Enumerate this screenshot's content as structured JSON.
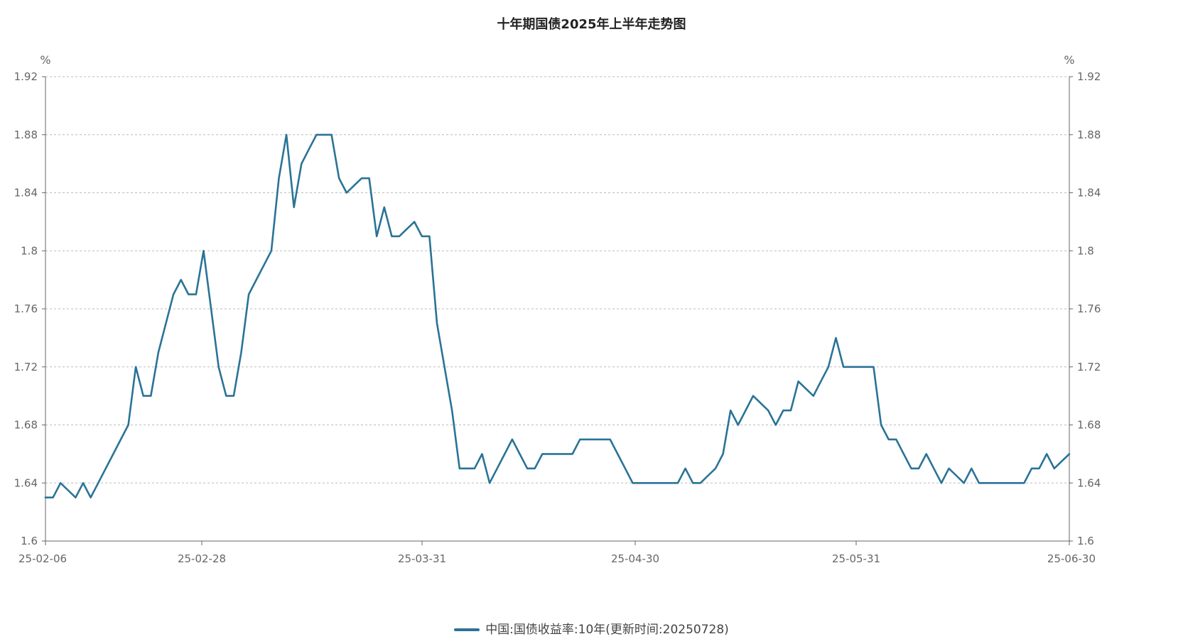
{
  "colors": {
    "series": "#2a7397",
    "grid": "#bbbbbb",
    "axis": "#666666"
  },
  "chart_data": {
    "type": "line",
    "title": "十年期国债2025年上半年走势图",
    "left_unit": "%",
    "right_unit": "%",
    "ylim": [
      1.6,
      1.92
    ],
    "yticks": [
      "1.6",
      "1.64",
      "1.68",
      "1.72",
      "1.76",
      "1.8",
      "1.84",
      "1.88",
      "1.92"
    ],
    "xticks": [
      "25-02-06",
      "25-02-28",
      "25-03-31",
      "25-04-30",
      "25-05-31",
      "25-06-30"
    ],
    "grid": true,
    "legend_position": "bottom",
    "series": [
      {
        "name": "中国:国债收益率:10年(更新时间:20250728)",
        "values": [
          1.63,
          1.63,
          1.64,
          1.635,
          1.63,
          1.64,
          1.63,
          1.64,
          1.65,
          1.66,
          1.67,
          1.68,
          1.72,
          1.7,
          1.7,
          1.73,
          1.75,
          1.77,
          1.78,
          1.77,
          1.77,
          1.8,
          1.76,
          1.72,
          1.7,
          1.7,
          1.73,
          1.77,
          1.78,
          1.79,
          1.8,
          1.85,
          1.88,
          1.83,
          1.86,
          1.87,
          1.88,
          1.88,
          1.88,
          1.85,
          1.84,
          1.845,
          1.85,
          1.85,
          1.81,
          1.83,
          1.81,
          1.81,
          1.815,
          1.82,
          1.81,
          1.81,
          1.75,
          1.72,
          1.69,
          1.65,
          1.65,
          1.65,
          1.66,
          1.64,
          1.65,
          1.66,
          1.67,
          1.66,
          1.65,
          1.65,
          1.66,
          1.66,
          1.66,
          1.66,
          1.66,
          1.67,
          1.67,
          1.67,
          1.67,
          1.67,
          1.66,
          1.65,
          1.64,
          1.64,
          1.64,
          1.64,
          1.64,
          1.64,
          1.64,
          1.65,
          1.64,
          1.64,
          1.645,
          1.65,
          1.66,
          1.69,
          1.68,
          1.69,
          1.7,
          1.695,
          1.69,
          1.68,
          1.69,
          1.69,
          1.71,
          1.705,
          1.7,
          1.71,
          1.72,
          1.74,
          1.72,
          1.72,
          1.72,
          1.72,
          1.72,
          1.68,
          1.67,
          1.67,
          1.66,
          1.65,
          1.65,
          1.66,
          1.65,
          1.64,
          1.65,
          1.645,
          1.64,
          1.65,
          1.64,
          1.64,
          1.64,
          1.64,
          1.64,
          1.64,
          1.64,
          1.65,
          1.65,
          1.66,
          1.65,
          1.655,
          1.66
        ]
      }
    ]
  }
}
